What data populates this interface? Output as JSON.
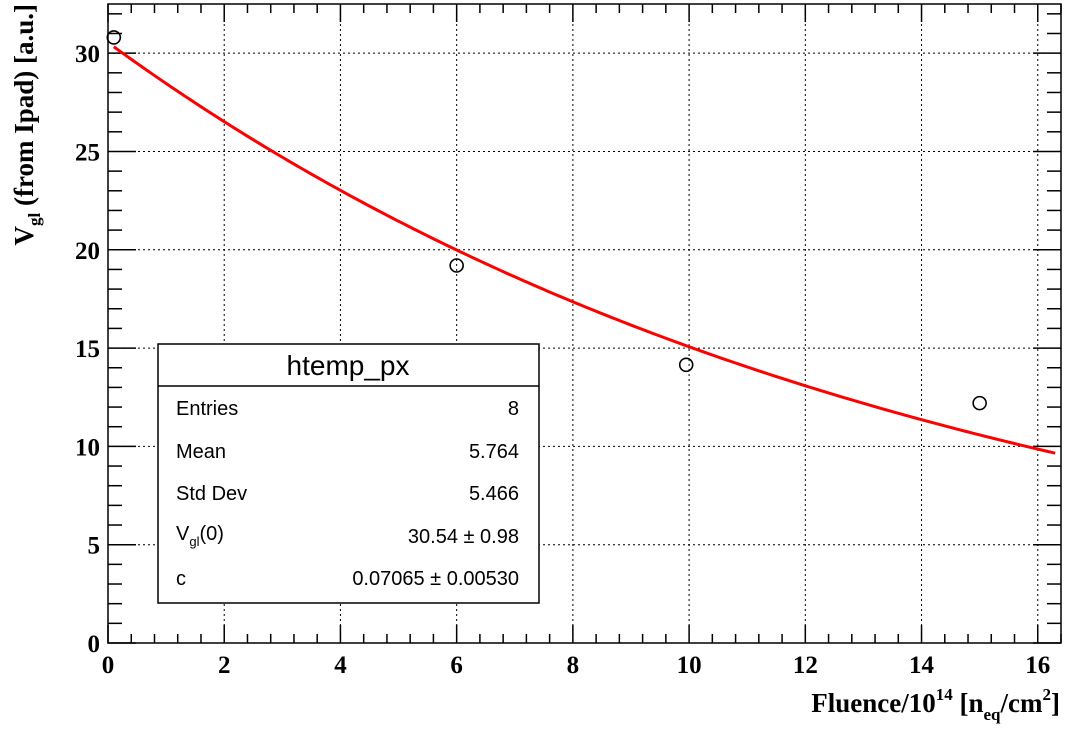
{
  "chart_data": {
    "type": "scatter",
    "xlabel": "Fluence/10",
    "xlabel_exp": "14",
    "xlabel_unit_open": " [n",
    "xlabel_unit_sub": "eq",
    "xlabel_unit_mid": "/cm",
    "xlabel_unit_sup": "2",
    "xlabel_unit_close": "]",
    "ylabel": "V",
    "ylabel_sub": "gl",
    "ylabel_rest": " (from Ipad) [a.u.]",
    "xlim": [
      0,
      16.4
    ],
    "ylim": [
      0,
      32.5
    ],
    "x_ticks": [
      0,
      2,
      4,
      6,
      8,
      10,
      12,
      14,
      16
    ],
    "y_ticks": [
      0,
      5,
      10,
      15,
      20,
      25,
      30
    ],
    "grid": true,
    "series": [
      {
        "type": "scatter",
        "marker": "open-circle",
        "color": "#000000",
        "points": [
          {
            "x": 0.1,
            "y": 30.8
          },
          {
            "x": 6.0,
            "y": 19.2
          },
          {
            "x": 9.95,
            "y": 14.15
          },
          {
            "x": 15.0,
            "y": 12.2
          }
        ]
      },
      {
        "type": "fit-line",
        "color": "#ff0000",
        "function": "exp",
        "p0": 30.54,
        "c": 0.07065,
        "x_range": [
          0.1,
          16.3
        ]
      }
    ],
    "stats_box": {
      "title": "htemp_px",
      "position": "bottom-left",
      "rows": [
        {
          "label": "Entries",
          "value": "8"
        },
        {
          "label": "Mean",
          "value": "5.764"
        },
        {
          "label": "Std Dev",
          "value": "5.466"
        },
        {
          "label_main": "V",
          "label_sub": "gl",
          "label_rest": "(0)",
          "value": "30.54 ± 0.98"
        },
        {
          "label": "c",
          "value": "0.07065 ± 0.00530"
        }
      ]
    }
  }
}
